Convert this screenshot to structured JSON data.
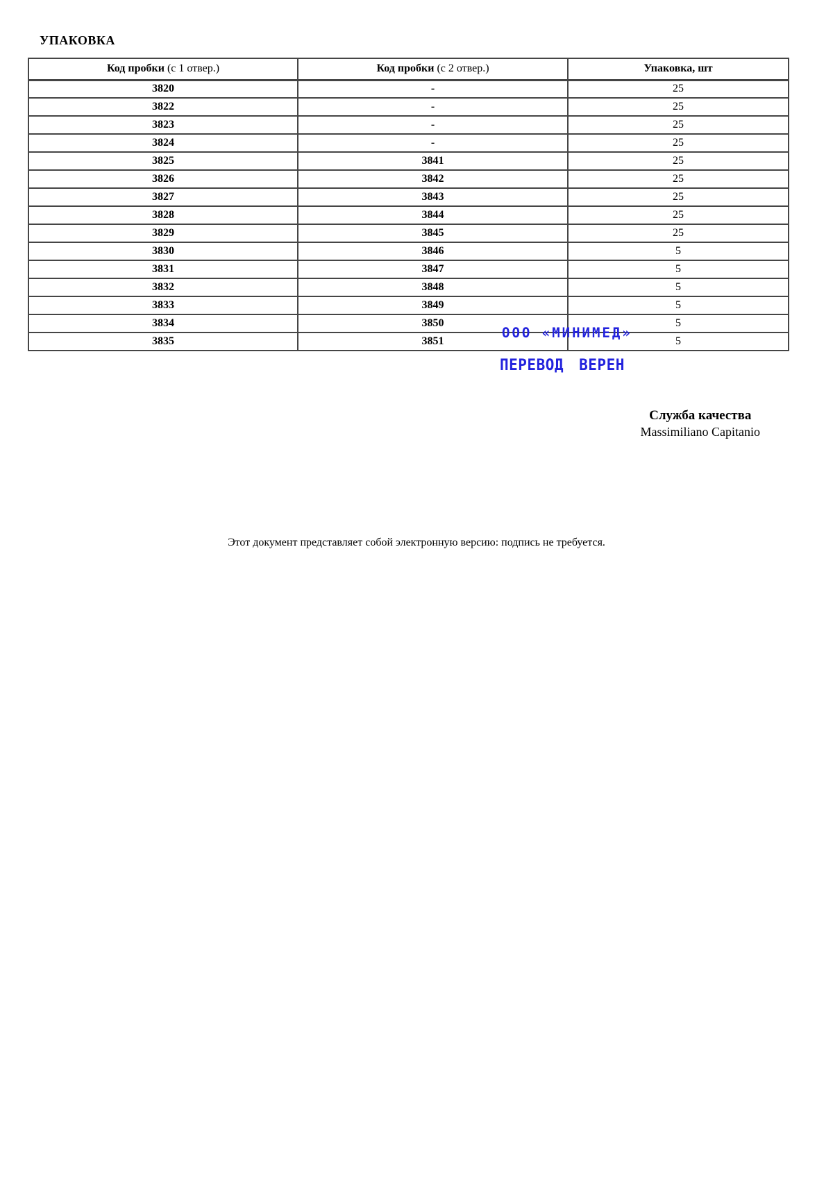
{
  "doc": {
    "title": "УПАКОВКА"
  },
  "table": {
    "headers": [
      {
        "bold": "Код пробки",
        "regular": " (с 1 отвер.)"
      },
      {
        "bold": "Код пробки",
        "regular": " (с 2 отвер.)"
      },
      {
        "bold": "Упаковка, шт",
        "regular": ""
      }
    ],
    "rows": [
      [
        "3820",
        "-",
        "25"
      ],
      [
        "3822",
        "-",
        "25"
      ],
      [
        "3823",
        "-",
        "25"
      ],
      [
        "3824",
        "-",
        "25"
      ],
      [
        "3825",
        "3841",
        "25"
      ],
      [
        "3826",
        "3842",
        "25"
      ],
      [
        "3827",
        "3843",
        "25"
      ],
      [
        "3828",
        "3844",
        "25"
      ],
      [
        "3829",
        "3845",
        "25"
      ],
      [
        "3830",
        "3846",
        "5"
      ],
      [
        "3831",
        "3847",
        "5"
      ],
      [
        "3832",
        "3848",
        "5"
      ],
      [
        "3833",
        "3849",
        "5"
      ],
      [
        "3834",
        "3850",
        "5"
      ],
      [
        "3835",
        "3851",
        "5"
      ]
    ]
  },
  "stamp": {
    "line1": "ООО «МИНИМЕД»",
    "line2": "ПЕРЕВОД ВЕРЕН",
    "color": "#2222dd"
  },
  "signature": {
    "department": "Служба качества",
    "name": "Massimiliano Capitanio"
  },
  "footer": {
    "note": "Этот документ представляет собой электронную версию: подпись не требуется."
  }
}
